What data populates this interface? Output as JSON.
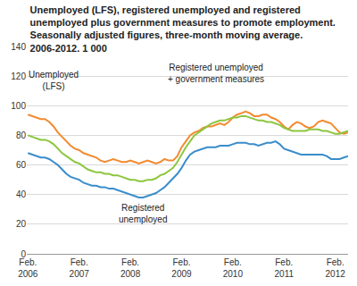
{
  "chart_data": {
    "type": "line",
    "title": "Unemployed (LFS), registered unemployed and registered unemployed plus government measures to promote employment. Seasonally adjusted figures, three-month moving average. 2006-2012. 1 000",
    "categories": [
      "Feb. 2006",
      null,
      null,
      null,
      null,
      null,
      null,
      null,
      null,
      null,
      null,
      null,
      "Feb. 2007",
      null,
      null,
      null,
      null,
      null,
      null,
      null,
      null,
      null,
      null,
      null,
      "Feb. 2008",
      null,
      null,
      null,
      null,
      null,
      null,
      null,
      null,
      null,
      null,
      null,
      "Feb. 2009",
      null,
      null,
      null,
      null,
      null,
      null,
      null,
      null,
      null,
      null,
      null,
      "Feb. 2010",
      null,
      null,
      null,
      null,
      null,
      null,
      null,
      null,
      null,
      null,
      null,
      "Feb. 2011",
      null,
      null,
      null,
      null,
      null,
      null,
      null,
      null,
      null,
      null,
      null,
      "Feb. 2012",
      null,
      null,
      null
    ],
    "series": [
      {
        "name": "Unemployed (LFS)",
        "color": "#f28a30",
        "values": [
          94,
          93,
          92,
          91,
          91,
          89,
          86,
          82,
          79,
          76,
          73,
          71,
          70,
          68,
          67,
          66,
          65,
          63,
          62,
          63,
          64,
          63,
          62,
          62,
          63,
          62,
          61,
          62,
          63,
          62,
          61,
          62,
          64,
          63,
          63,
          66,
          72,
          76,
          80,
          82,
          83,
          85,
          86,
          86,
          87,
          88,
          87,
          89,
          92,
          94,
          95,
          96,
          95,
          93,
          93,
          94,
          94,
          92,
          91,
          89,
          86,
          84,
          87,
          89,
          88,
          86,
          85,
          86,
          89,
          90,
          89,
          88,
          85,
          82,
          81,
          82
        ]
      },
      {
        "name": "Registered unemployed + government measures",
        "color": "#8cc63e",
        "values": [
          80,
          79,
          78,
          77,
          77,
          76,
          74,
          71,
          68,
          66,
          64,
          62,
          61,
          59,
          57,
          56,
          55,
          55,
          54,
          54,
          53,
          53,
          52,
          51,
          50,
          50,
          49,
          49,
          50,
          50,
          51,
          53,
          54,
          56,
          58,
          62,
          67,
          72,
          76,
          80,
          82,
          84,
          86,
          88,
          89,
          90,
          90,
          91,
          92,
          92,
          93,
          93,
          92,
          91,
          90,
          90,
          89,
          89,
          88,
          87,
          85,
          84,
          83,
          83,
          83,
          83,
          84,
          84,
          84,
          83,
          83,
          82,
          81,
          81,
          82,
          83
        ]
      },
      {
        "name": "Registered unemployed",
        "color": "#3a8dcb",
        "values": [
          68,
          67,
          66,
          65,
          65,
          64,
          62,
          60,
          57,
          54,
          52,
          51,
          50,
          48,
          47,
          46,
          46,
          45,
          45,
          44,
          44,
          43,
          42,
          41,
          40,
          39,
          38,
          38,
          39,
          40,
          41,
          43,
          45,
          48,
          51,
          54,
          58,
          63,
          67,
          69,
          70,
          71,
          72,
          72,
          72,
          73,
          73,
          73,
          74,
          75,
          75,
          75,
          74,
          74,
          73,
          74,
          75,
          75,
          76,
          74,
          71,
          70,
          69,
          68,
          67,
          67,
          67,
          67,
          67,
          67,
          66,
          64,
          64,
          64,
          65,
          66
        ]
      }
    ],
    "ylim": [
      0,
      140
    ],
    "yticks": [
      0,
      20,
      40,
      60,
      80,
      100,
      120,
      140
    ],
    "grid": true
  }
}
